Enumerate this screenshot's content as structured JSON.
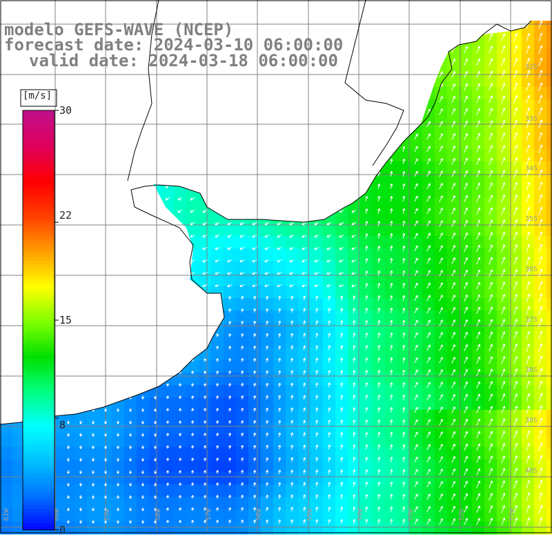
{
  "title": {
    "line1": "modelo GEFS-WAVE (NCEP)",
    "line2": "forecast date: 2024-03-10 06:00:00",
    "line3": "valid date: 2024-03-18 06:00:00"
  },
  "colorbar": {
    "unit": "[m/s]",
    "ticks": [
      "30",
      "22",
      "15",
      "8",
      "0"
    ],
    "tick_values": [
      30,
      22,
      15,
      8,
      0
    ],
    "min": 0,
    "max": 30,
    "colors": [
      "#0000ff",
      "#0070ff",
      "#00c0ff",
      "#00ffff",
      "#00ff80",
      "#00e000",
      "#80ff00",
      "#ffff00",
      "#ffa000",
      "#ff4000",
      "#ff0000",
      "#e0005a",
      "#c0108a"
    ]
  },
  "map_style": {
    "land_color": "#ffffff",
    "coast_color": "#000000",
    "grid_color": "#808080",
    "arrow_color": "#ffffff"
  },
  "lat_labels": [
    "32S",
    "33S",
    "34S",
    "35S",
    "36S",
    "37S",
    "38S",
    "39S",
    "40S"
  ],
  "lon_labels": [
    "61W",
    "60W",
    "59W",
    "58W",
    "57W",
    "56W",
    "55W",
    "54W",
    "53W",
    "52W",
    "51W"
  ]
}
